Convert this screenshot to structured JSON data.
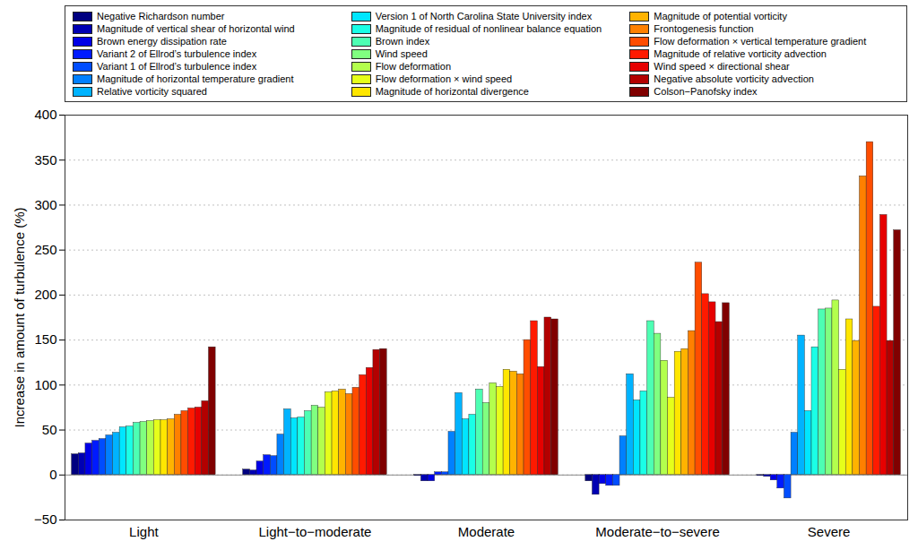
{
  "chart_data": {
    "type": "bar",
    "categories": [
      "Light",
      "Light−to−moderate",
      "Moderate",
      "Moderate−to−severe",
      "Severe"
    ],
    "y_label": "Increase in amount of turbulence (%)",
    "ylim": [
      -50,
      400
    ],
    "yticks": [
      -50,
      0,
      50,
      100,
      150,
      200,
      250,
      300,
      350,
      400
    ],
    "grid": true,
    "legend": "top",
    "series": [
      {
        "name": "Negative Richardson number",
        "color": "#000080",
        "values": [
          23,
          6,
          -1,
          -7,
          -1
        ]
      },
      {
        "name": "Magnitude of vertical shear of horizontal wind",
        "color": "#0000b3",
        "values": [
          24,
          5,
          -7,
          -22,
          -2
        ]
      },
      {
        "name": "Brown energy dissipation rate",
        "color": "#0000e6",
        "values": [
          35,
          15,
          -7,
          -10,
          -6
        ]
      },
      {
        "name": "Variant 2 of Ellrod’s turbulence index",
        "color": "#001aff",
        "values": [
          38,
          22,
          3,
          -12,
          -15
        ]
      },
      {
        "name": "Variant 1 of Ellrod’s turbulence index",
        "color": "#004dff",
        "values": [
          40,
          21,
          3,
          -12,
          -26
        ]
      },
      {
        "name": "Magnitude of horizontal temperature gradient",
        "color": "#0080ff",
        "values": [
          44,
          45,
          48,
          43,
          47
        ]
      },
      {
        "name": "Relative vorticity squared",
        "color": "#00b3ff",
        "values": [
          47,
          73,
          91,
          112,
          155
        ]
      },
      {
        "name": "Version 1 of North Carolina State University index",
        "color": "#00e6ff",
        "values": [
          53,
          63,
          62,
          83,
          71
        ]
      },
      {
        "name": "Magnitude of residual of nonlinear balance equation",
        "color": "#1affe6",
        "values": [
          54,
          64,
          67,
          93,
          142
        ]
      },
      {
        "name": "Brown index",
        "color": "#4dffb3",
        "values": [
          58,
          71,
          95,
          171,
          184
        ]
      },
      {
        "name": "Wind speed",
        "color": "#80ff80",
        "values": [
          59,
          77,
          80,
          157,
          185
        ]
      },
      {
        "name": "Flow deformation",
        "color": "#b3ff4d",
        "values": [
          60,
          75,
          102,
          127,
          194
        ]
      },
      {
        "name": "Flow deformation × wind speed",
        "color": "#e6ff1a",
        "values": [
          61,
          92,
          98,
          86,
          117
        ]
      },
      {
        "name": "Magnitude of horizontal divergence",
        "color": "#ffe600",
        "values": [
          61,
          93,
          117,
          137,
          173
        ]
      },
      {
        "name": "Magnitude of potential vorticity",
        "color": "#ffb300",
        "values": [
          62,
          95,
          115,
          140,
          149
        ]
      },
      {
        "name": "Frontogenesis function",
        "color": "#ff8000",
        "values": [
          67,
          90,
          112,
          160,
          332
        ]
      },
      {
        "name": "Flow deformation × vertical temperature gradient",
        "color": "#ff4d00",
        "values": [
          71,
          97,
          150,
          236,
          370
        ]
      },
      {
        "name": "Magnitude of relative vorticity advection",
        "color": "#ff1a00",
        "values": [
          74,
          111,
          171,
          201,
          187
        ]
      },
      {
        "name": "Wind speed × directional shear",
        "color": "#e60000",
        "values": [
          75,
          119,
          120,
          192,
          289
        ]
      },
      {
        "name": "Negative absolute vorticity advection",
        "color": "#b30000",
        "values": [
          82,
          139,
          175,
          170,
          149
        ]
      },
      {
        "name": "Colson−Panofsky index",
        "color": "#800000",
        "values": [
          142,
          140,
          173,
          191,
          272
        ]
      }
    ]
  }
}
